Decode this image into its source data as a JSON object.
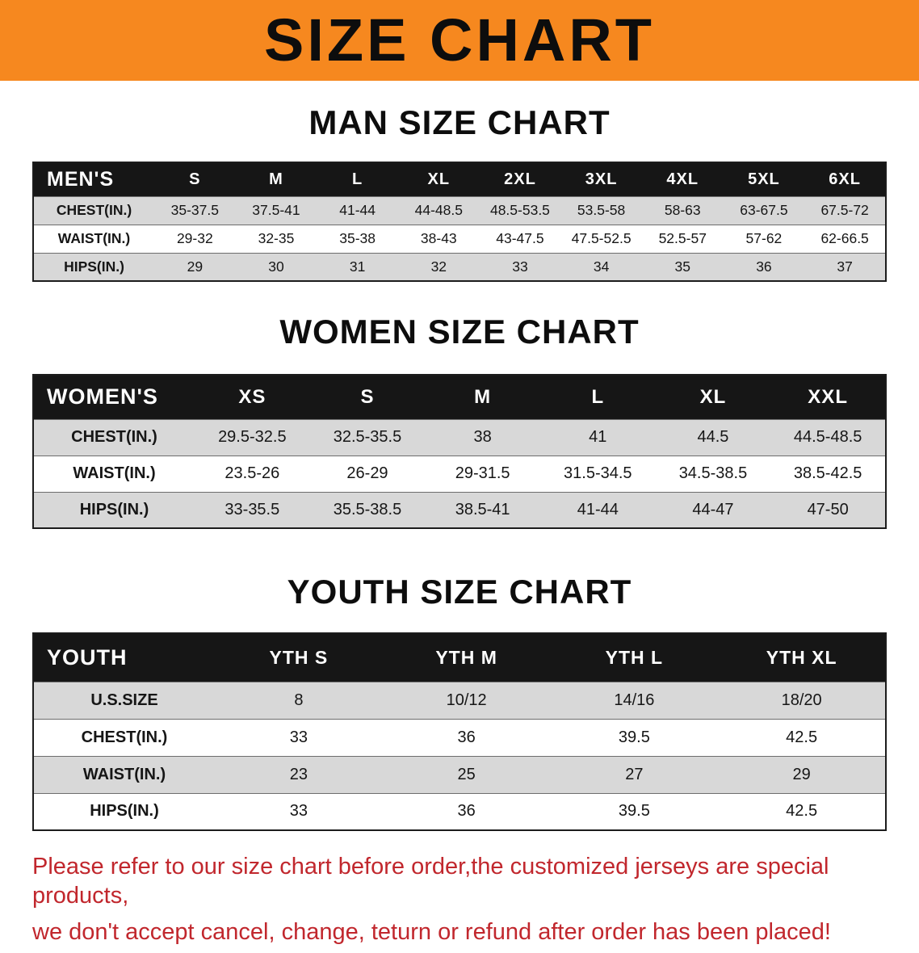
{
  "colors": {
    "banner_bg": "#f6881f",
    "table_header_bg": "#161616",
    "row_alt_bg": "#d8d8d8",
    "note_color": "#c1272d"
  },
  "banner": {
    "title": "SIZE CHART"
  },
  "sections": [
    {
      "heading": "MAN SIZE CHART",
      "table": {
        "header": [
          "MEN'S",
          "S",
          "M",
          "L",
          "XL",
          "2XL",
          "3XL",
          "4XL",
          "5XL",
          "6XL"
        ],
        "rows": [
          [
            "CHEST(IN.)",
            "35-37.5",
            "37.5-41",
            "41-44",
            "44-48.5",
            "48.5-53.5",
            "53.5-58",
            "58-63",
            "63-67.5",
            "67.5-72"
          ],
          [
            "WAIST(IN.)",
            "29-32",
            "32-35",
            "35-38",
            "38-43",
            "43-47.5",
            "47.5-52.5",
            "52.5-57",
            "57-62",
            "62-66.5"
          ],
          [
            "HIPS(IN.)",
            "29",
            "30",
            "31",
            "32",
            "33",
            "34",
            "35",
            "36",
            "37"
          ]
        ]
      }
    },
    {
      "heading": "WOMEN SIZE CHART",
      "table": {
        "header": [
          "WOMEN'S",
          "XS",
          "S",
          "M",
          "L",
          "XL",
          "XXL"
        ],
        "rows": [
          [
            "CHEST(IN.)",
            "29.5-32.5",
            "32.5-35.5",
            "38",
            "41",
            "44.5",
            "44.5-48.5"
          ],
          [
            "WAIST(IN.)",
            "23.5-26",
            "26-29",
            "29-31.5",
            "31.5-34.5",
            "34.5-38.5",
            "38.5-42.5"
          ],
          [
            "HIPS(IN.)",
            "33-35.5",
            "35.5-38.5",
            "38.5-41",
            "41-44",
            "44-47",
            "47-50"
          ]
        ]
      }
    },
    {
      "heading": "YOUTH SIZE CHART",
      "table": {
        "header": [
          "YOUTH",
          "YTH S",
          "YTH M",
          "YTH L",
          "YTH XL"
        ],
        "rows": [
          [
            "U.S.SIZE",
            "8",
            "10/12",
            "14/16",
            "18/20"
          ],
          [
            "CHEST(IN.)",
            "33",
            "36",
            "39.5",
            "42.5"
          ],
          [
            "WAIST(IN.)",
            "23",
            "25",
            "27",
            "29"
          ],
          [
            "HIPS(IN.)",
            "33",
            "36",
            "39.5",
            "42.5"
          ]
        ]
      }
    }
  ],
  "note": {
    "line1": "Please refer to our size chart before order,the customized jerseys are special products,",
    "line2": "we don't accept cancel, change, teturn or refund after order has been placed!"
  }
}
